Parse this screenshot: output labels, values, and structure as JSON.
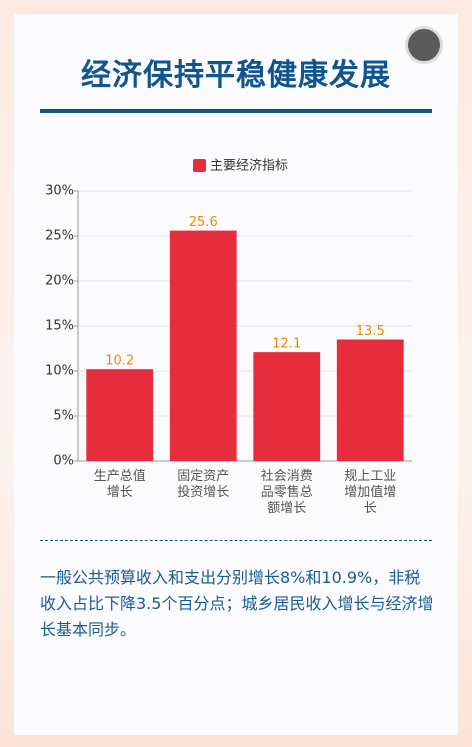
{
  "header": {
    "title": "经济保持平稳健康发展"
  },
  "chart_data": {
    "type": "bar",
    "categories": [
      "生产总值增长",
      "固定资产投资增长",
      "社会消费品零售总额增长",
      "规上工业增加值增长"
    ],
    "series": [
      {
        "name": "主要经济指标",
        "color": "#e52d3c",
        "values": [
          10.2,
          25.6,
          12.1,
          13.5
        ]
      }
    ],
    "ylim": [
      0,
      30
    ],
    "yticks": [
      {
        "value": 0,
        "label": "0%"
      },
      {
        "value": 5,
        "label": "5%"
      },
      {
        "value": 10,
        "label": "10%"
      },
      {
        "value": 15,
        "label": "15%"
      },
      {
        "value": 20,
        "label": "20%"
      },
      {
        "value": 25,
        "label": "25%"
      },
      {
        "value": 30,
        "label": "30%"
      }
    ],
    "grid": true,
    "legend": "top"
  },
  "summary": "一般公共预算收入和支出分别增长8%和10.9%，非税收入占比下降3.5个百分点；城乡居民收入增长与经济增长基本同步。"
}
